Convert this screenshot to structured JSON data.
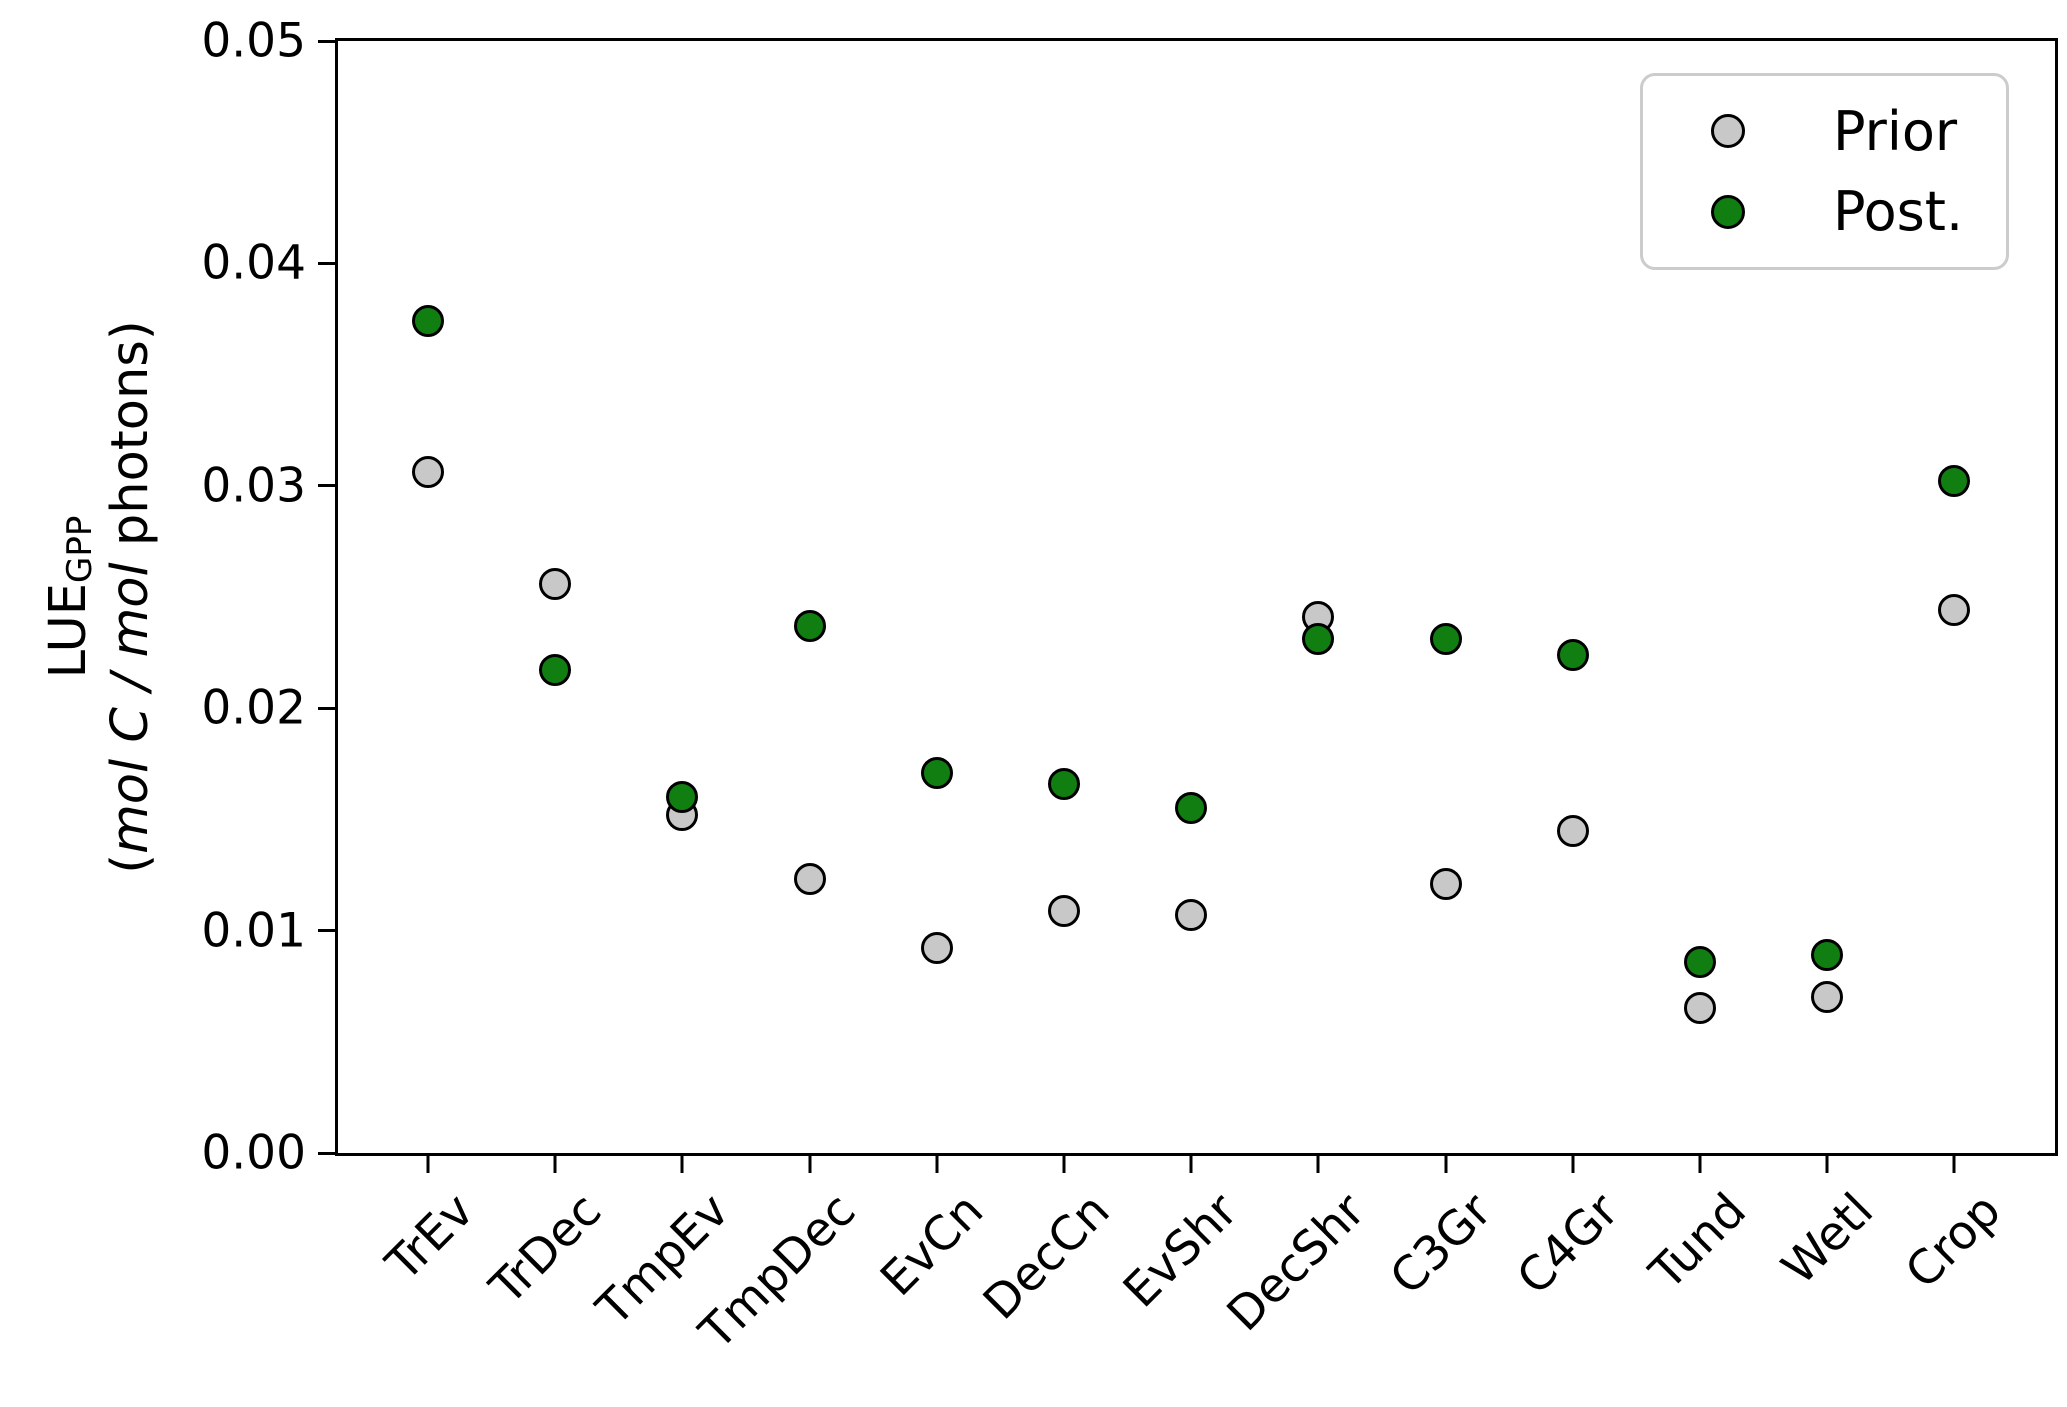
{
  "chart_data": {
    "type": "scatter",
    "title": "",
    "xlabel": "",
    "ylabel": {
      "line1": "LUE",
      "line1_sub": "GPP",
      "line2_open": "(",
      "line2_italic": "mol C / mol",
      "line2_rest": " photons)"
    },
    "categories": [
      "TrEv",
      "TrDec",
      "TmpEv",
      "TmpDec",
      "EvCn",
      "DecCn",
      "EvShr",
      "DecShr",
      "C3Gr",
      "C4Gr",
      "Tund",
      "Wetl",
      "Crop"
    ],
    "series": [
      {
        "name": "Prior",
        "color": "#c8c8c8",
        "values": [
          0.0306,
          0.0256,
          0.0152,
          0.0123,
          0.0092,
          0.0109,
          0.0107,
          0.0241,
          0.0121,
          0.0145,
          0.0065,
          0.007,
          0.0244
        ]
      },
      {
        "name": "Post.",
        "color": "#117e11",
        "values": [
          0.0374,
          0.0217,
          0.016,
          0.0237,
          0.0171,
          0.0166,
          0.0155,
          0.0231,
          0.0231,
          0.0224,
          0.0086,
          0.0089,
          0.0302
        ]
      }
    ],
    "ylim": [
      0,
      0.05
    ],
    "yticks": {
      "values": [
        0,
        0.01,
        0.02,
        0.03,
        0.04,
        0.05
      ],
      "labels": [
        "0.00",
        "0.01",
        "0.02",
        "0.03",
        "0.04",
        "0.05"
      ]
    },
    "grid": false,
    "legend": {
      "position": "upper right",
      "entries": [
        "Prior",
        "Post."
      ]
    },
    "marker_edge_color": "#000000"
  }
}
